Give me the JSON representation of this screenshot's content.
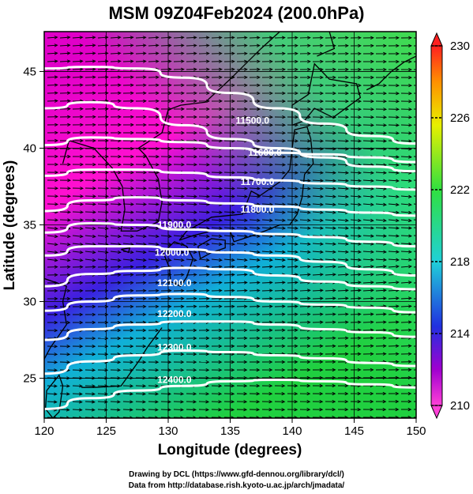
{
  "title": "MSM 09Z04Feb2024 (200.0hPa)",
  "map": {
    "xlabel": "Longitude (degrees)",
    "ylabel": "Latitude  (degrees)",
    "xticks": [
      "120",
      "125",
      "130",
      "135",
      "140",
      "145",
      "150"
    ],
    "yticks": [
      "25",
      "30",
      "35",
      "40",
      "45"
    ],
    "lon_range": [
      120,
      150
    ],
    "lat_range": [
      22.4,
      47.6
    ],
    "contours": [
      {
        "label": "11500.0",
        "value": 11500,
        "lon": 136.8,
        "lat": 41.6
      },
      {
        "label": "11600.0",
        "value": 11600,
        "lon": 137.8,
        "lat": 39.5
      },
      {
        "label": "11700.0",
        "value": 11700,
        "lon": 137.2,
        "lat": 37.6
      },
      {
        "label": "11800.0",
        "value": 11800,
        "lon": 137.2,
        "lat": 35.8
      },
      {
        "label": "11900.0",
        "value": 11900,
        "lon": 130.5,
        "lat": 34.8
      },
      {
        "label": "12000.0",
        "value": 12000,
        "lon": 130.3,
        "lat": 33.0
      },
      {
        "label": "12100.0",
        "value": 12100,
        "lon": 130.5,
        "lat": 31.0
      },
      {
        "label": "12200.0",
        "value": 12200,
        "lon": 130.5,
        "lat": 29.0
      },
      {
        "label": "12300.0",
        "value": 12300,
        "lon": 130.5,
        "lat": 26.8
      },
      {
        "label": "12400.0",
        "value": 12400,
        "lon": 130.5,
        "lat": 24.7
      }
    ]
  },
  "colorbar": {
    "labels": [
      "230",
      "226",
      "222",
      "218",
      "214",
      "210"
    ],
    "min": 210,
    "max": 230
  },
  "credits": {
    "line1": "Drawing by DCL (https://www.gfd-dennou.org/library/dcl/)",
    "line2": "Data from http://database.rish.kyoto-u.ac.jp/arch/jmadata/"
  }
}
